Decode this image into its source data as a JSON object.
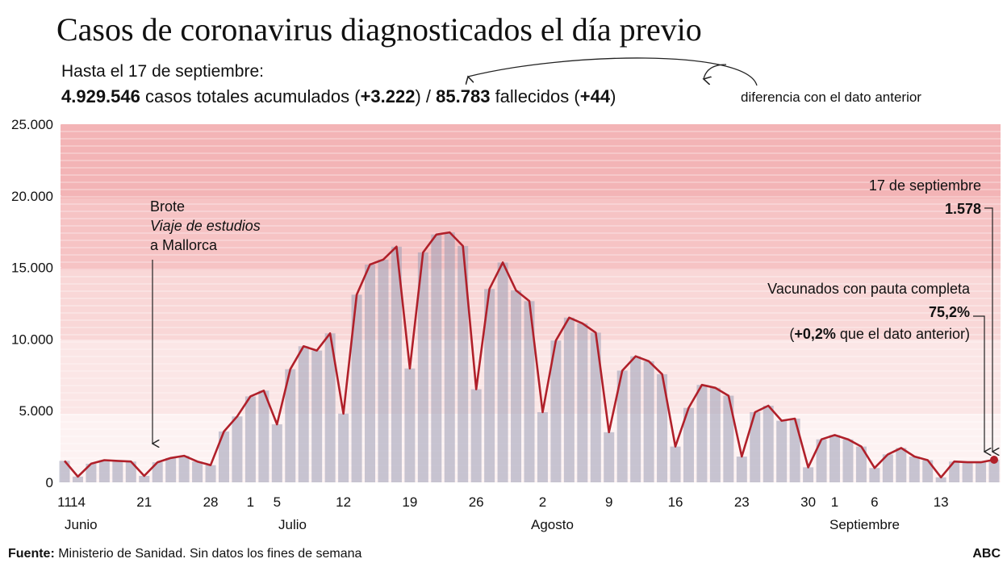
{
  "chart_data": {
    "type": "bar_line",
    "title": "Casos de coronavirus diagnosticados el día previo",
    "subtitle": "Hasta el 17 de septiembre:",
    "summary": [
      "4.929.546",
      " casos totales acumulados (",
      "+3.222",
      ") / ",
      "85.783",
      " fallecidos (",
      "+44",
      ")"
    ],
    "diff_note": "diferencia con el dato anterior",
    "annotation_outbreak": [
      "Brote",
      "Viaje de estudios",
      "a Mallorca"
    ],
    "last_date": "17 de septiembre",
    "vaccination": {
      "title": "Vacunados con pauta completa",
      "value": "75,2%",
      "change": [
        "(",
        "+0,2%",
        " que el dato anterior)"
      ]
    },
    "months": [
      "Junio",
      "Julio",
      "Agosto",
      "Septiembre"
    ],
    "source": [
      "Fuente:",
      " Ministerio de Sanidad. Sin datos los fines de semana"
    ],
    "brand": "ABC",
    "categories": [
      "11",
      "14",
      null,
      null,
      null,
      null,
      "21",
      null,
      null,
      null,
      null,
      "28",
      null,
      null,
      "1",
      null,
      "5",
      null,
      null,
      null,
      null,
      "12",
      null,
      null,
      null,
      null,
      "19",
      null,
      null,
      null,
      null,
      "26",
      null,
      null,
      null,
      null,
      "2",
      null,
      null,
      null,
      null,
      "9",
      null,
      null,
      null,
      null,
      "16",
      null,
      null,
      null,
      null,
      "23",
      null,
      null,
      null,
      null,
      "30",
      null,
      "1",
      null,
      null,
      "6",
      null,
      null,
      null,
      null,
      "13",
      null,
      null,
      null,
      null
    ],
    "values": [
      1500,
      400,
      1300,
      1550,
      1500,
      1450,
      450,
      1400,
      1700,
      1850,
      1450,
      1200,
      3550,
      4600,
      6000,
      6400,
      4050,
      7900,
      9500,
      9200,
      10400,
      4800,
      13100,
      15200,
      15550,
      16450,
      7950,
      16050,
      17300,
      17450,
      16500,
      6500,
      13500,
      15350,
      13400,
      12650,
      4900,
      9900,
      11500,
      11100,
      10450,
      3500,
      7800,
      8800,
      8450,
      7550,
      2500,
      5200,
      6800,
      6600,
      6050,
      1800,
      4900,
      5350,
      4300,
      4450,
      1050,
      3000,
      3300,
      3000,
      2500,
      1000,
      1950,
      2400,
      1800,
      1550,
      350,
      1450,
      1400,
      1400,
      1578
    ],
    "value_labels": [
      null,
      null,
      null,
      null,
      null,
      null,
      null,
      null,
      null,
      null,
      null,
      null,
      null,
      null,
      null,
      null,
      null,
      null,
      null,
      null,
      null,
      null,
      null,
      null,
      null,
      null,
      null,
      null,
      null,
      null,
      null,
      null,
      null,
      null,
      null,
      null,
      null,
      null,
      null,
      null,
      null,
      null,
      null,
      null,
      null,
      null,
      null,
      null,
      null,
      null,
      null,
      null,
      null,
      null,
      null,
      null,
      null,
      null,
      null,
      null,
      null,
      null,
      null,
      null,
      null,
      null,
      null,
      null,
      null,
      null,
      "1.578"
    ],
    "bar_color": "#9a9cb4",
    "line_color": "#b0202a",
    "ylim": [
      0,
      25000
    ],
    "yticks": [
      0,
      {
        "value": 5000,
        "label": "5.000"
      },
      {
        "value": 10000,
        "label": "10.000"
      },
      {
        "value": 15000,
        "label": "15.000"
      },
      {
        "value": 20000,
        "label": "20.000"
      },
      {
        "value": 25000,
        "label": "25.000"
      }
    ]
  }
}
